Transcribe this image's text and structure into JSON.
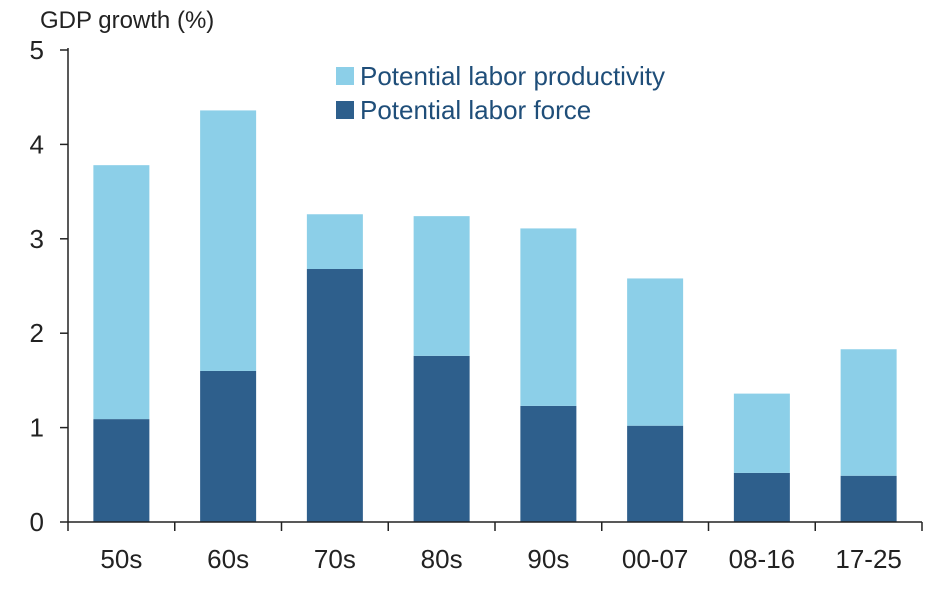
{
  "chart_data": {
    "type": "bar",
    "stacked": true,
    "ylabel": "GDP growth (%)",
    "xlabel": "",
    "ylim": [
      0,
      5
    ],
    "yticks": [
      "0",
      "1",
      "2",
      "3",
      "4",
      "5"
    ],
    "grid": false,
    "legend_position": "top-center",
    "categories": [
      "50s",
      "60s",
      "70s",
      "80s",
      "90s",
      "00-07",
      "08-16",
      "17-25"
    ],
    "series": [
      {
        "name": "Potential labor force",
        "color": "#2e5f8c",
        "values": [
          1.09,
          1.6,
          2.68,
          1.76,
          1.23,
          1.02,
          0.52,
          0.49
        ]
      },
      {
        "name": "Potential labor productivity",
        "color": "#8ccfe8",
        "values": [
          2.69,
          2.76,
          0.58,
          1.48,
          1.88,
          1.56,
          0.84,
          1.34
        ]
      }
    ],
    "legend_order": [
      "Potential labor productivity",
      "Potential labor force"
    ]
  }
}
